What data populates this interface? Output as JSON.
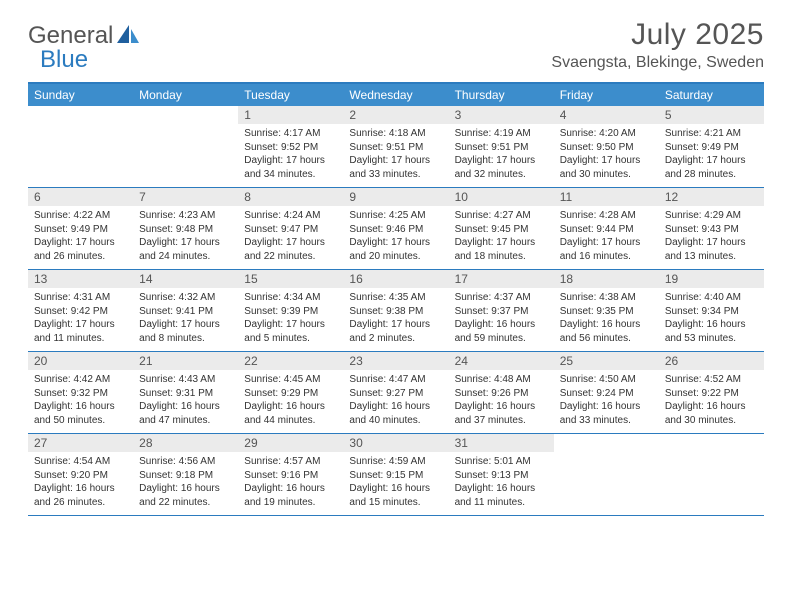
{
  "brand": {
    "general": "General",
    "blue": "Blue"
  },
  "title": "July 2025",
  "location": "Svaengsta, Blekinge, Sweden",
  "colors": {
    "accent": "#3c8dcc",
    "accent_border": "#2b7bbf",
    "daynum_bg": "#ebebeb",
    "text": "#333333",
    "title_text": "#555555"
  },
  "layout": {
    "cols": 7,
    "rows": 5
  },
  "dayHeaders": [
    "Sunday",
    "Monday",
    "Tuesday",
    "Wednesday",
    "Thursday",
    "Friday",
    "Saturday"
  ],
  "weeks": [
    [
      {
        "n": "",
        "sunrise": "",
        "sunset": "",
        "daylight": ""
      },
      {
        "n": "",
        "sunrise": "",
        "sunset": "",
        "daylight": ""
      },
      {
        "n": "1",
        "sunrise": "Sunrise: 4:17 AM",
        "sunset": "Sunset: 9:52 PM",
        "daylight": "Daylight: 17 hours and 34 minutes."
      },
      {
        "n": "2",
        "sunrise": "Sunrise: 4:18 AM",
        "sunset": "Sunset: 9:51 PM",
        "daylight": "Daylight: 17 hours and 33 minutes."
      },
      {
        "n": "3",
        "sunrise": "Sunrise: 4:19 AM",
        "sunset": "Sunset: 9:51 PM",
        "daylight": "Daylight: 17 hours and 32 minutes."
      },
      {
        "n": "4",
        "sunrise": "Sunrise: 4:20 AM",
        "sunset": "Sunset: 9:50 PM",
        "daylight": "Daylight: 17 hours and 30 minutes."
      },
      {
        "n": "5",
        "sunrise": "Sunrise: 4:21 AM",
        "sunset": "Sunset: 9:49 PM",
        "daylight": "Daylight: 17 hours and 28 minutes."
      }
    ],
    [
      {
        "n": "6",
        "sunrise": "Sunrise: 4:22 AM",
        "sunset": "Sunset: 9:49 PM",
        "daylight": "Daylight: 17 hours and 26 minutes."
      },
      {
        "n": "7",
        "sunrise": "Sunrise: 4:23 AM",
        "sunset": "Sunset: 9:48 PM",
        "daylight": "Daylight: 17 hours and 24 minutes."
      },
      {
        "n": "8",
        "sunrise": "Sunrise: 4:24 AM",
        "sunset": "Sunset: 9:47 PM",
        "daylight": "Daylight: 17 hours and 22 minutes."
      },
      {
        "n": "9",
        "sunrise": "Sunrise: 4:25 AM",
        "sunset": "Sunset: 9:46 PM",
        "daylight": "Daylight: 17 hours and 20 minutes."
      },
      {
        "n": "10",
        "sunrise": "Sunrise: 4:27 AM",
        "sunset": "Sunset: 9:45 PM",
        "daylight": "Daylight: 17 hours and 18 minutes."
      },
      {
        "n": "11",
        "sunrise": "Sunrise: 4:28 AM",
        "sunset": "Sunset: 9:44 PM",
        "daylight": "Daylight: 17 hours and 16 minutes."
      },
      {
        "n": "12",
        "sunrise": "Sunrise: 4:29 AM",
        "sunset": "Sunset: 9:43 PM",
        "daylight": "Daylight: 17 hours and 13 minutes."
      }
    ],
    [
      {
        "n": "13",
        "sunrise": "Sunrise: 4:31 AM",
        "sunset": "Sunset: 9:42 PM",
        "daylight": "Daylight: 17 hours and 11 minutes."
      },
      {
        "n": "14",
        "sunrise": "Sunrise: 4:32 AM",
        "sunset": "Sunset: 9:41 PM",
        "daylight": "Daylight: 17 hours and 8 minutes."
      },
      {
        "n": "15",
        "sunrise": "Sunrise: 4:34 AM",
        "sunset": "Sunset: 9:39 PM",
        "daylight": "Daylight: 17 hours and 5 minutes."
      },
      {
        "n": "16",
        "sunrise": "Sunrise: 4:35 AM",
        "sunset": "Sunset: 9:38 PM",
        "daylight": "Daylight: 17 hours and 2 minutes."
      },
      {
        "n": "17",
        "sunrise": "Sunrise: 4:37 AM",
        "sunset": "Sunset: 9:37 PM",
        "daylight": "Daylight: 16 hours and 59 minutes."
      },
      {
        "n": "18",
        "sunrise": "Sunrise: 4:38 AM",
        "sunset": "Sunset: 9:35 PM",
        "daylight": "Daylight: 16 hours and 56 minutes."
      },
      {
        "n": "19",
        "sunrise": "Sunrise: 4:40 AM",
        "sunset": "Sunset: 9:34 PM",
        "daylight": "Daylight: 16 hours and 53 minutes."
      }
    ],
    [
      {
        "n": "20",
        "sunrise": "Sunrise: 4:42 AM",
        "sunset": "Sunset: 9:32 PM",
        "daylight": "Daylight: 16 hours and 50 minutes."
      },
      {
        "n": "21",
        "sunrise": "Sunrise: 4:43 AM",
        "sunset": "Sunset: 9:31 PM",
        "daylight": "Daylight: 16 hours and 47 minutes."
      },
      {
        "n": "22",
        "sunrise": "Sunrise: 4:45 AM",
        "sunset": "Sunset: 9:29 PM",
        "daylight": "Daylight: 16 hours and 44 minutes."
      },
      {
        "n": "23",
        "sunrise": "Sunrise: 4:47 AM",
        "sunset": "Sunset: 9:27 PM",
        "daylight": "Daylight: 16 hours and 40 minutes."
      },
      {
        "n": "24",
        "sunrise": "Sunrise: 4:48 AM",
        "sunset": "Sunset: 9:26 PM",
        "daylight": "Daylight: 16 hours and 37 minutes."
      },
      {
        "n": "25",
        "sunrise": "Sunrise: 4:50 AM",
        "sunset": "Sunset: 9:24 PM",
        "daylight": "Daylight: 16 hours and 33 minutes."
      },
      {
        "n": "26",
        "sunrise": "Sunrise: 4:52 AM",
        "sunset": "Sunset: 9:22 PM",
        "daylight": "Daylight: 16 hours and 30 minutes."
      }
    ],
    [
      {
        "n": "27",
        "sunrise": "Sunrise: 4:54 AM",
        "sunset": "Sunset: 9:20 PM",
        "daylight": "Daylight: 16 hours and 26 minutes."
      },
      {
        "n": "28",
        "sunrise": "Sunrise: 4:56 AM",
        "sunset": "Sunset: 9:18 PM",
        "daylight": "Daylight: 16 hours and 22 minutes."
      },
      {
        "n": "29",
        "sunrise": "Sunrise: 4:57 AM",
        "sunset": "Sunset: 9:16 PM",
        "daylight": "Daylight: 16 hours and 19 minutes."
      },
      {
        "n": "30",
        "sunrise": "Sunrise: 4:59 AM",
        "sunset": "Sunset: 9:15 PM",
        "daylight": "Daylight: 16 hours and 15 minutes."
      },
      {
        "n": "31",
        "sunrise": "Sunrise: 5:01 AM",
        "sunset": "Sunset: 9:13 PM",
        "daylight": "Daylight: 16 hours and 11 minutes."
      },
      {
        "n": "",
        "sunrise": "",
        "sunset": "",
        "daylight": ""
      },
      {
        "n": "",
        "sunrise": "",
        "sunset": "",
        "daylight": ""
      }
    ]
  ]
}
